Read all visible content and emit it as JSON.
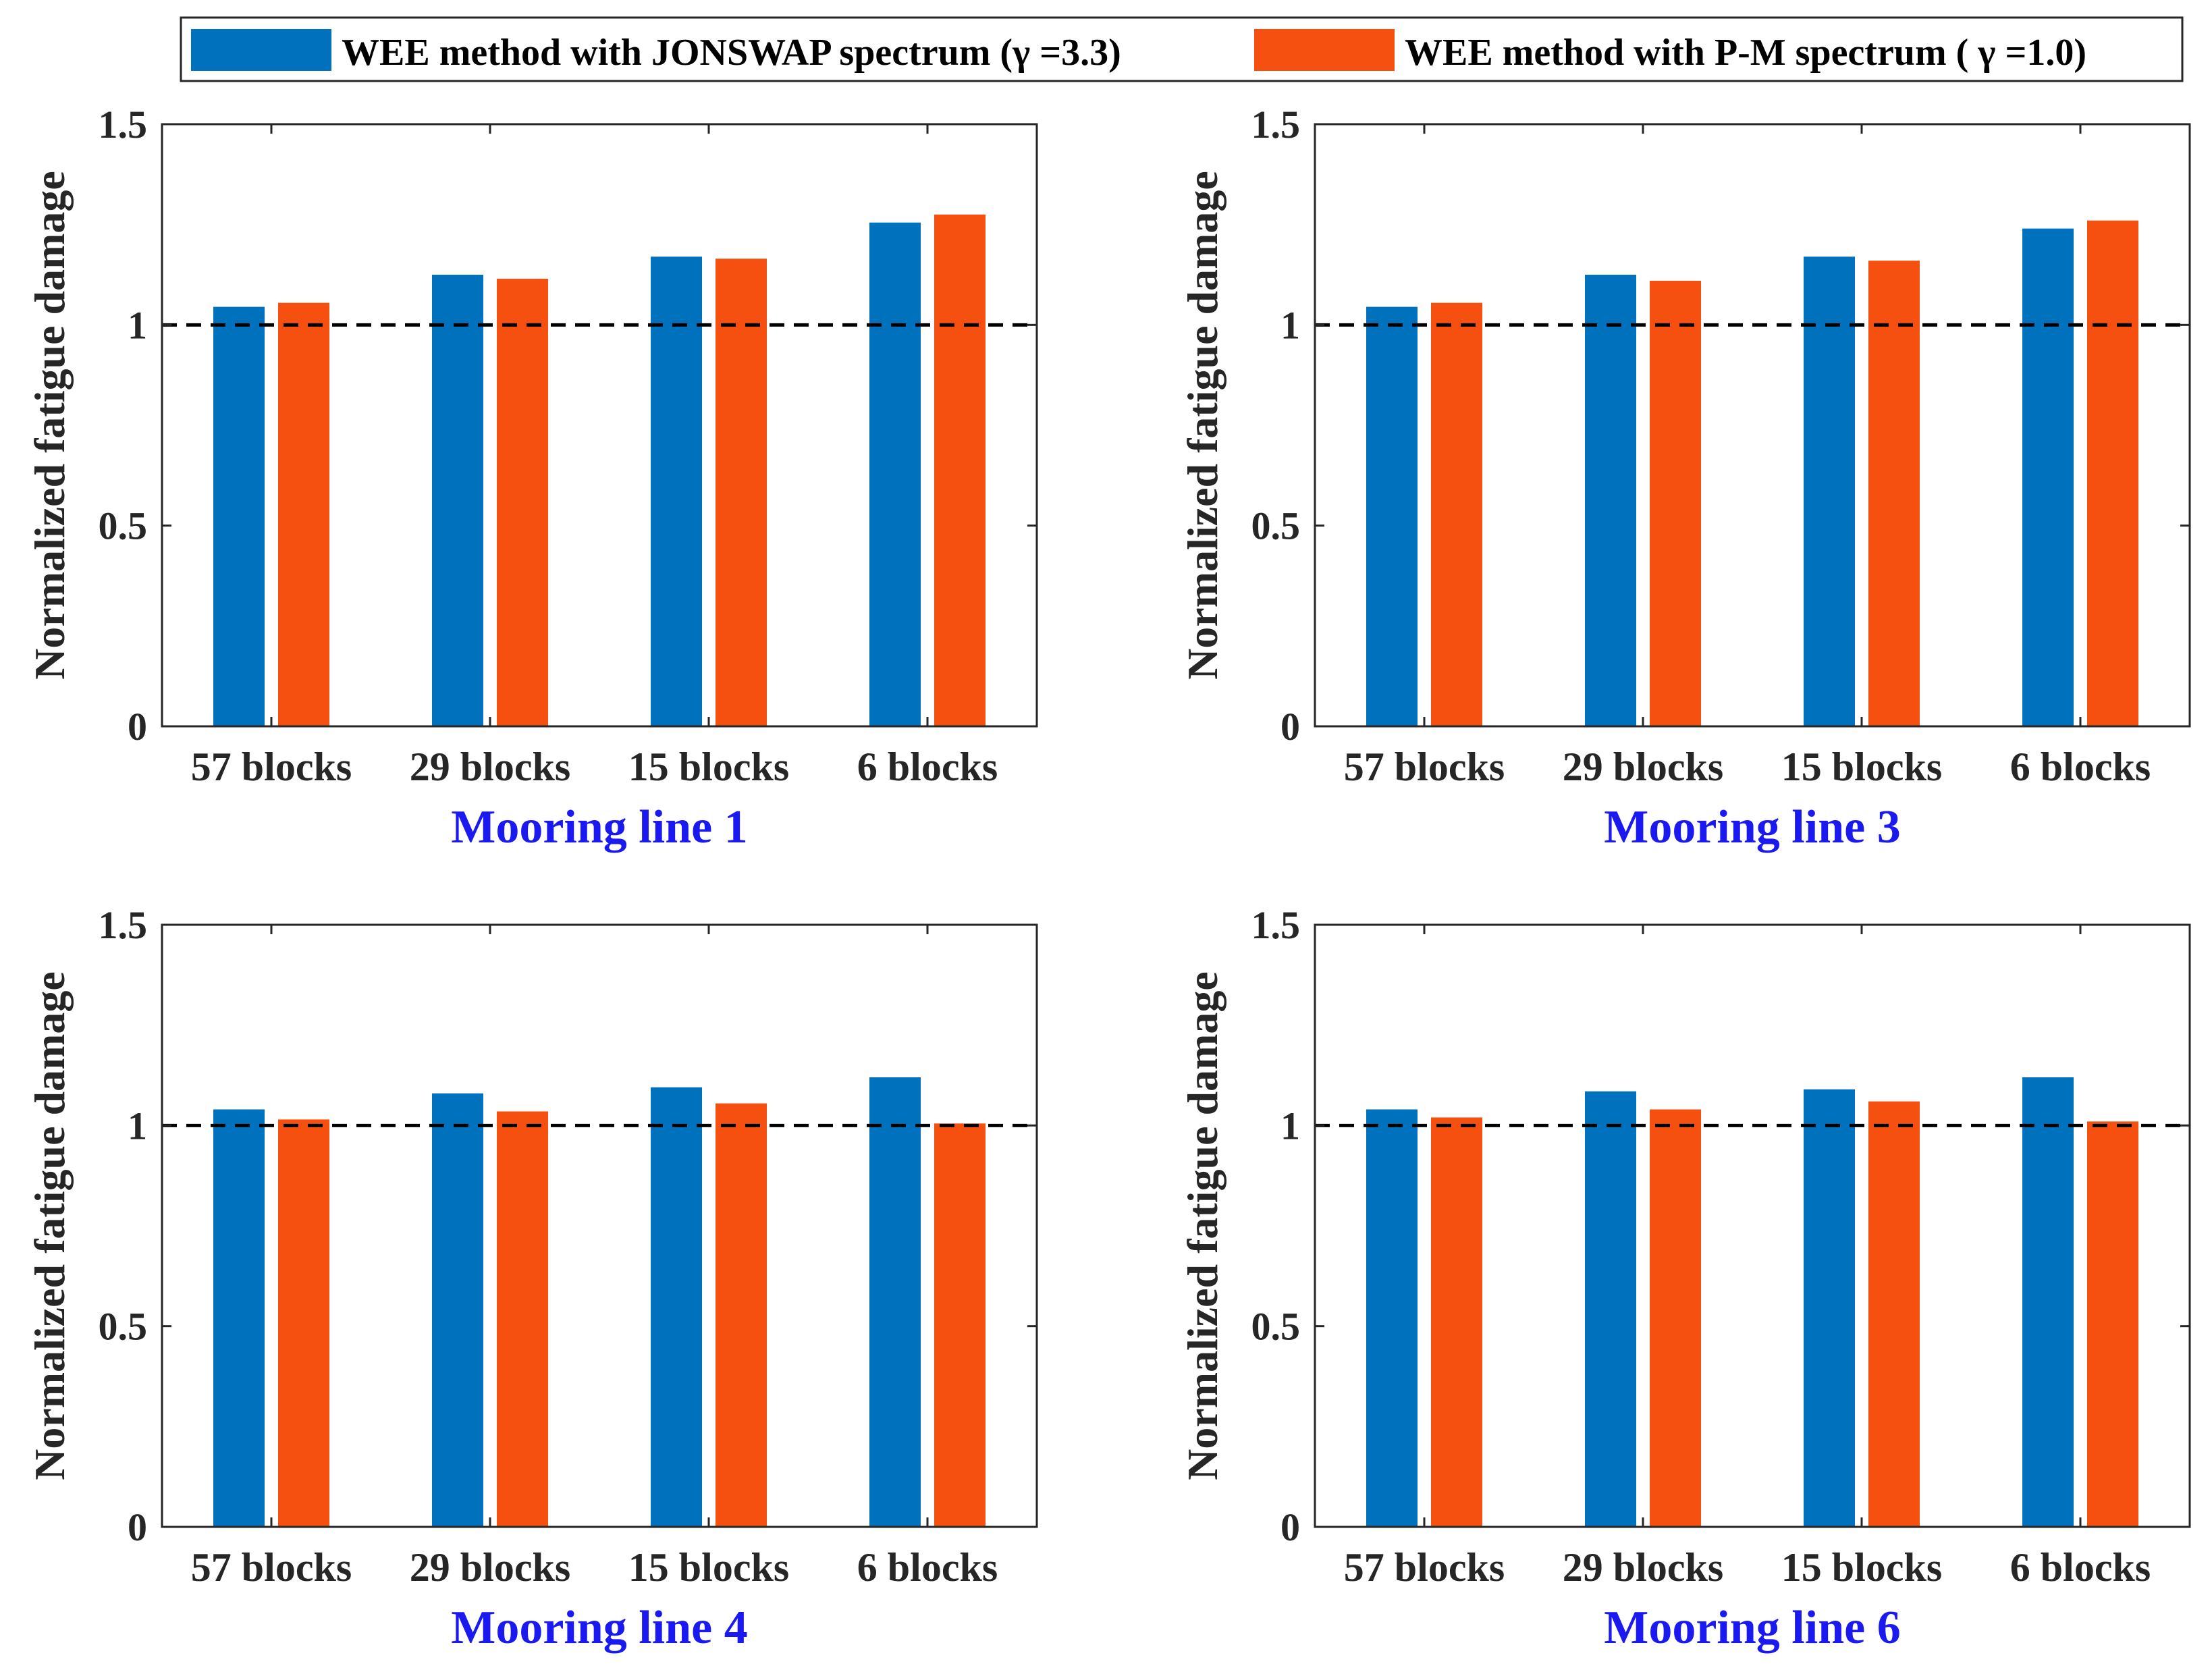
{
  "legend": {
    "entries": [
      {
        "label": "WEE method with JONSWAP spectrum (γ =3.3)",
        "color": "#0072BD"
      },
      {
        "label": "WEE method with P-M spectrum ( γ =1.0)",
        "color": "#F5500F"
      }
    ]
  },
  "colors": {
    "series1": "#0072BD",
    "series2": "#F5500F",
    "axis": "#262626",
    "title": "#1A1AF0",
    "refline": "#000000"
  },
  "chart_data": [
    {
      "type": "bar",
      "title": "Mooring line 1",
      "ylabel": "Normalized fatigue damage",
      "xlabel": "",
      "categories": [
        "57 blocks",
        "29 blocks",
        "15 blocks",
        "6 blocks"
      ],
      "series": [
        {
          "name": "WEE method with JONSWAP spectrum (γ =3.3)",
          "values": [
            1.045,
            1.125,
            1.17,
            1.255
          ]
        },
        {
          "name": "WEE method with P-M spectrum ( γ =1.0)",
          "values": [
            1.055,
            1.115,
            1.165,
            1.275
          ]
        }
      ],
      "ylim": [
        0,
        1.5
      ],
      "yticks": [
        0,
        0.5,
        1,
        1.5
      ],
      "ytick_labels": [
        "0",
        "0.5",
        "1",
        "1.5"
      ],
      "reference_line": 1
    },
    {
      "type": "bar",
      "title": "Mooring line 3",
      "ylabel": "Normalized fatigue damage",
      "xlabel": "",
      "categories": [
        "57 blocks",
        "29 blocks",
        "15 blocks",
        "6 blocks"
      ],
      "series": [
        {
          "name": "WEE method with JONSWAP spectrum (γ =3.3)",
          "values": [
            1.045,
            1.125,
            1.17,
            1.24
          ]
        },
        {
          "name": "WEE method with P-M spectrum ( γ =1.0)",
          "values": [
            1.055,
            1.11,
            1.16,
            1.26
          ]
        }
      ],
      "ylim": [
        0,
        1.5
      ],
      "yticks": [
        0,
        0.5,
        1,
        1.5
      ],
      "ytick_labels": [
        "0",
        "0.5",
        "1",
        "1.5"
      ],
      "reference_line": 1
    },
    {
      "type": "bar",
      "title": "Mooring line 4",
      "ylabel": "Normalized fatigue damage",
      "xlabel": "",
      "categories": [
        "57 blocks",
        "29 blocks",
        "15 blocks",
        "6 blocks"
      ],
      "series": [
        {
          "name": "WEE method with JONSWAP spectrum (γ =3.3)",
          "values": [
            1.04,
            1.08,
            1.095,
            1.12
          ]
        },
        {
          "name": "WEE method with P-M spectrum ( γ =1.0)",
          "values": [
            1.015,
            1.035,
            1.055,
            1.005
          ]
        }
      ],
      "ylim": [
        0,
        1.5
      ],
      "yticks": [
        0,
        0.5,
        1,
        1.5
      ],
      "ytick_labels": [
        "0",
        "0.5",
        "1",
        "1.5"
      ],
      "reference_line": 1
    },
    {
      "type": "bar",
      "title": "Mooring line 6",
      "ylabel": "Normalized fatigue damage",
      "xlabel": "",
      "categories": [
        "57 blocks",
        "29 blocks",
        "15 blocks",
        "6 blocks"
      ],
      "series": [
        {
          "name": "WEE method with JONSWAP spectrum (γ =3.3)",
          "values": [
            1.04,
            1.085,
            1.09,
            1.12
          ]
        },
        {
          "name": "WEE method with P-M spectrum ( γ =1.0)",
          "values": [
            1.02,
            1.04,
            1.06,
            1.01
          ]
        }
      ],
      "ylim": [
        0,
        1.5
      ],
      "yticks": [
        0,
        0.5,
        1,
        1.5
      ],
      "ytick_labels": [
        "0",
        "0.5",
        "1",
        "1.5"
      ],
      "reference_line": 1
    }
  ]
}
